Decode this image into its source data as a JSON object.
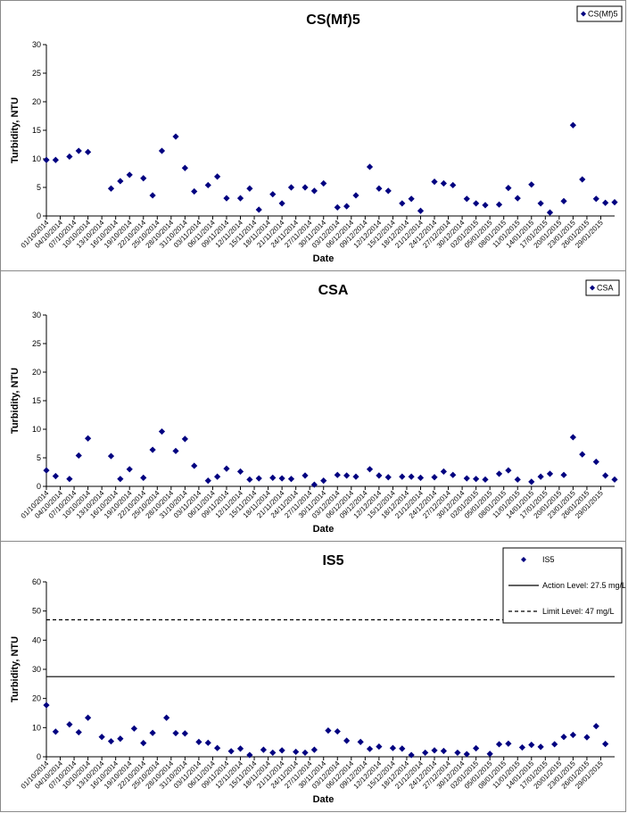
{
  "chart_data": [
    {
      "type": "scatter",
      "title": "CS(Mf)5",
      "xlabel": "Date",
      "ylabel": "Turbidity, NTU",
      "ylim": [
        0,
        30
      ],
      "yticks": [
        0,
        5,
        10,
        15,
        20,
        25,
        30
      ],
      "x_range": [
        "01/10/2014",
        "31/01/2015"
      ],
      "xtick_labels": [
        "01/10/2014",
        "04/10/2014",
        "07/10/2014",
        "10/10/2014",
        "13/10/2014",
        "16/10/2014",
        "19/10/2014",
        "22/10/2014",
        "25/10/2014",
        "28/10/2014",
        "31/10/2014",
        "03/11/2014",
        "06/11/2014",
        "09/11/2014",
        "12/11/2014",
        "15/11/2014",
        "18/11/2014",
        "21/11/2014",
        "24/11/2014",
        "27/11/2014",
        "30/11/2014",
        "03/12/2014",
        "06/12/2014",
        "09/12/2014",
        "12/12/2014",
        "15/12/2014",
        "18/12/2014",
        "21/12/2014",
        "24/12/2014",
        "27/12/2014",
        "30/12/2014",
        "02/01/2015",
        "05/01/2015",
        "08/01/2015",
        "11/01/2015",
        "14/01/2015",
        "17/01/2015",
        "20/01/2015",
        "23/01/2015",
        "26/01/2015",
        "29/01/2015"
      ],
      "grid": false,
      "legend_position": "top-right",
      "series": [
        {
          "name": "CS(Mf)5",
          "marker": "diamond",
          "color": "#000080",
          "points": [
            [
              "01/10/2014",
              9.8
            ],
            [
              "03/10/2014",
              9.8
            ],
            [
              "06/10/2014",
              10.4
            ],
            [
              "08/10/2014",
              11.4
            ],
            [
              "10/10/2014",
              11.2
            ],
            [
              "15/10/2014",
              4.8
            ],
            [
              "17/10/2014",
              6.1
            ],
            [
              "19/10/2014",
              7.2
            ],
            [
              "22/10/2014",
              6.6
            ],
            [
              "24/10/2014",
              3.6
            ],
            [
              "26/10/2014",
              11.4
            ],
            [
              "29/10/2014",
              13.9
            ],
            [
              "31/10/2014",
              8.4
            ],
            [
              "02/11/2014",
              4.3
            ],
            [
              "05/11/2014",
              5.4
            ],
            [
              "07/11/2014",
              6.9
            ],
            [
              "09/11/2014",
              3.1
            ],
            [
              "12/11/2014",
              3.1
            ],
            [
              "14/11/2014",
              4.8
            ],
            [
              "16/11/2014",
              1.1
            ],
            [
              "19/11/2014",
              3.8
            ],
            [
              "21/11/2014",
              2.2
            ],
            [
              "23/11/2014",
              5.0
            ],
            [
              "26/11/2014",
              5.0
            ],
            [
              "28/11/2014",
              4.4
            ],
            [
              "30/11/2014",
              5.7
            ],
            [
              "03/12/2014",
              1.5
            ],
            [
              "05/12/2014",
              1.7
            ],
            [
              "07/12/2014",
              3.6
            ],
            [
              "10/12/2014",
              8.6
            ],
            [
              "12/12/2014",
              4.8
            ],
            [
              "14/12/2014",
              4.4
            ],
            [
              "17/12/2014",
              2.2
            ],
            [
              "19/12/2014",
              3.0
            ],
            [
              "21/12/2014",
              0.9
            ],
            [
              "24/12/2014",
              6.0
            ],
            [
              "26/12/2014",
              5.7
            ],
            [
              "28/12/2014",
              5.4
            ],
            [
              "31/12/2014",
              3.0
            ],
            [
              "02/01/2015",
              2.2
            ],
            [
              "04/01/2015",
              1.9
            ],
            [
              "07/01/2015",
              2.0
            ],
            [
              "09/01/2015",
              4.9
            ],
            [
              "11/01/2015",
              3.1
            ],
            [
              "14/01/2015",
              5.5
            ],
            [
              "16/01/2015",
              2.2
            ],
            [
              "18/01/2015",
              0.6
            ],
            [
              "21/01/2015",
              2.6
            ],
            [
              "23/01/2015",
              15.9
            ],
            [
              "25/01/2015",
              6.4
            ],
            [
              "28/01/2015",
              3.0
            ],
            [
              "30/01/2015",
              2.3
            ],
            [
              "01/02/2015",
              2.4
            ]
          ]
        }
      ]
    },
    {
      "type": "scatter",
      "title": "CSA",
      "xlabel": "Date",
      "ylabel": "Turbidity, NTU",
      "ylim": [
        0,
        30
      ],
      "yticks": [
        0,
        5,
        10,
        15,
        20,
        25,
        30
      ],
      "x_range": [
        "01/10/2014",
        "31/01/2015"
      ],
      "xtick_labels": [
        "01/10/2014",
        "04/10/2014",
        "07/10/2014",
        "10/10/2014",
        "13/10/2014",
        "16/10/2014",
        "19/10/2014",
        "22/10/2014",
        "25/10/2014",
        "28/10/2014",
        "31/10/2014",
        "03/11/2014",
        "06/11/2014",
        "09/11/2014",
        "12/11/2014",
        "15/11/2014",
        "18/11/2014",
        "21/11/2014",
        "24/11/2014",
        "27/11/2014",
        "30/11/2014",
        "03/12/2014",
        "06/12/2014",
        "09/12/2014",
        "12/12/2014",
        "15/12/2014",
        "18/12/2014",
        "21/12/2014",
        "24/12/2014",
        "27/12/2014",
        "30/12/2014",
        "02/01/2015",
        "05/01/2015",
        "08/01/2015",
        "11/01/2015",
        "14/01/2015",
        "17/01/2015",
        "20/01/2015",
        "23/01/2015",
        "26/01/2015",
        "29/01/2015"
      ],
      "grid": false,
      "legend_position": "top-right",
      "series": [
        {
          "name": "CSA",
          "marker": "diamond",
          "color": "#000080",
          "points": [
            [
              "01/10/2014",
              2.8
            ],
            [
              "03/10/2014",
              1.8
            ],
            [
              "06/10/2014",
              1.3
            ],
            [
              "08/10/2014",
              5.4
            ],
            [
              "10/10/2014",
              8.4
            ],
            [
              "15/10/2014",
              5.3
            ],
            [
              "17/10/2014",
              1.3
            ],
            [
              "19/10/2014",
              3.0
            ],
            [
              "22/10/2014",
              1.5
            ],
            [
              "24/10/2014",
              6.4
            ],
            [
              "26/10/2014",
              9.6
            ],
            [
              "29/10/2014",
              6.2
            ],
            [
              "31/10/2014",
              8.3
            ],
            [
              "02/11/2014",
              3.6
            ],
            [
              "05/11/2014",
              1.0
            ],
            [
              "07/11/2014",
              1.7
            ],
            [
              "09/11/2014",
              3.1
            ],
            [
              "12/11/2014",
              2.6
            ],
            [
              "14/11/2014",
              1.2
            ],
            [
              "16/11/2014",
              1.4
            ],
            [
              "19/11/2014",
              1.5
            ],
            [
              "21/11/2014",
              1.4
            ],
            [
              "23/11/2014",
              1.3
            ],
            [
              "26/11/2014",
              1.9
            ],
            [
              "28/11/2014",
              0.3
            ],
            [
              "30/11/2014",
              1.0
            ],
            [
              "03/12/2014",
              2.0
            ],
            [
              "05/12/2014",
              1.9
            ],
            [
              "07/12/2014",
              1.7
            ],
            [
              "10/12/2014",
              3.0
            ],
            [
              "12/12/2014",
              1.9
            ],
            [
              "14/12/2014",
              1.6
            ],
            [
              "17/12/2014",
              1.7
            ],
            [
              "19/12/2014",
              1.7
            ],
            [
              "21/12/2014",
              1.5
            ],
            [
              "24/12/2014",
              1.6
            ],
            [
              "26/12/2014",
              2.6
            ],
            [
              "28/12/2014",
              2.0
            ],
            [
              "31/12/2014",
              1.4
            ],
            [
              "02/01/2015",
              1.3
            ],
            [
              "04/01/2015",
              1.2
            ],
            [
              "07/01/2015",
              2.2
            ],
            [
              "09/01/2015",
              2.8
            ],
            [
              "11/01/2015",
              1.2
            ],
            [
              "14/01/2015",
              0.8
            ],
            [
              "16/01/2015",
              1.7
            ],
            [
              "18/01/2015",
              2.2
            ],
            [
              "21/01/2015",
              2.0
            ],
            [
              "23/01/2015",
              8.6
            ],
            [
              "25/01/2015",
              5.6
            ],
            [
              "28/01/2015",
              4.3
            ],
            [
              "30/01/2015",
              1.9
            ],
            [
              "01/02/2015",
              1.2
            ]
          ]
        }
      ]
    },
    {
      "type": "scatter",
      "title": "IS5",
      "xlabel": "Date",
      "ylabel": "Turbidity, NTU",
      "ylim": [
        0,
        60
      ],
      "yticks": [
        0,
        10,
        20,
        30,
        40,
        50,
        60
      ],
      "x_range": [
        "01/10/2014",
        "31/01/2015"
      ],
      "xtick_labels": [
        "01/10/2014",
        "04/10/2014",
        "07/10/2014",
        "10/10/2014",
        "13/10/2014",
        "16/10/2014",
        "19/10/2014",
        "22/10/2014",
        "25/10/2014",
        "28/10/2014",
        "31/10/2014",
        "03/11/2014",
        "06/11/2014",
        "09/11/2014",
        "12/11/2014",
        "15/11/2014",
        "18/11/2014",
        "21/11/2014",
        "24/11/2014",
        "27/11/2014",
        "30/11/2014",
        "03/12/2014",
        "06/12/2014",
        "09/12/2014",
        "12/12/2014",
        "15/12/2014",
        "18/12/2014",
        "21/12/2014",
        "24/12/2014",
        "27/12/2014",
        "30/12/2014",
        "02/01/2015",
        "05/01/2015",
        "08/01/2015",
        "11/01/2015",
        "14/01/2015",
        "17/01/2015",
        "20/01/2015",
        "23/01/2015",
        "26/01/2015",
        "29/01/2015"
      ],
      "grid": false,
      "legend_position": "top-right",
      "series": [
        {
          "name": "IS5",
          "marker": "diamond",
          "color": "#000080",
          "points": [
            [
              "01/10/2014",
              17.7
            ],
            [
              "03/10/2014",
              8.6
            ],
            [
              "06/10/2014",
              11.1
            ],
            [
              "08/10/2014",
              8.4
            ],
            [
              "10/10/2014",
              13.4
            ],
            [
              "13/10/2014",
              6.8
            ],
            [
              "15/10/2014",
              5.3
            ],
            [
              "17/10/2014",
              6.2
            ],
            [
              "20/10/2014",
              9.7
            ],
            [
              "22/10/2014",
              4.7
            ],
            [
              "24/10/2014",
              8.2
            ],
            [
              "27/10/2014",
              13.4
            ],
            [
              "29/10/2014",
              8.1
            ],
            [
              "31/10/2014",
              8.0
            ],
            [
              "03/11/2014",
              5.1
            ],
            [
              "05/11/2014",
              4.8
            ],
            [
              "07/11/2014",
              3.0
            ],
            [
              "10/11/2014",
              1.9
            ],
            [
              "12/11/2014",
              2.8
            ],
            [
              "14/11/2014",
              0.6
            ],
            [
              "17/11/2014",
              2.4
            ],
            [
              "19/11/2014",
              1.4
            ],
            [
              "21/11/2014",
              2.2
            ],
            [
              "24/11/2014",
              1.7
            ],
            [
              "26/11/2014",
              1.4
            ],
            [
              "28/11/2014",
              2.4
            ],
            [
              "01/12/2014",
              9.0
            ],
            [
              "03/12/2014",
              8.7
            ],
            [
              "05/12/2014",
              5.5
            ],
            [
              "08/12/2014",
              5.1
            ],
            [
              "10/12/2014",
              2.7
            ],
            [
              "12/12/2014",
              3.5
            ],
            [
              "15/12/2014",
              3.0
            ],
            [
              "17/12/2014",
              2.8
            ],
            [
              "19/12/2014",
              0.6
            ],
            [
              "22/12/2014",
              1.4
            ],
            [
              "24/12/2014",
              2.2
            ],
            [
              "26/12/2014",
              2.0
            ],
            [
              "29/12/2014",
              1.4
            ],
            [
              "31/12/2014",
              0.9
            ],
            [
              "02/01/2015",
              2.9
            ],
            [
              "05/01/2015",
              1.0
            ],
            [
              "07/01/2015",
              4.3
            ],
            [
              "09/01/2015",
              4.5
            ],
            [
              "12/01/2015",
              3.2
            ],
            [
              "14/01/2015",
              4.1
            ],
            [
              "16/01/2015",
              3.4
            ],
            [
              "19/01/2015",
              4.3
            ],
            [
              "21/01/2015",
              6.8
            ],
            [
              "23/01/2015",
              7.5
            ],
            [
              "26/01/2015",
              6.7
            ],
            [
              "28/01/2015",
              10.5
            ],
            [
              "30/01/2015",
              4.4
            ]
          ]
        },
        {
          "name": "Action Level: 27.5 mg/L",
          "type": "hline",
          "value": 27.5,
          "style": "solid",
          "color": "#000000"
        },
        {
          "name": "Limit Level: 47 mg/L",
          "type": "hline",
          "value": 47,
          "style": "dashed",
          "color": "#000000"
        }
      ]
    }
  ]
}
